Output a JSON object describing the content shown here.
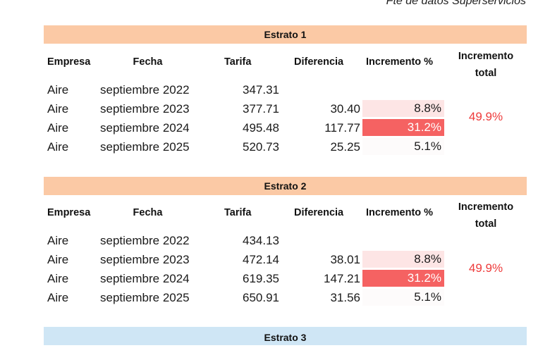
{
  "source_note": "Fte de datos Superservicios",
  "headers": {
    "empresa": "Empresa",
    "fecha": "Fecha",
    "tarifa": "Tarifa",
    "diferencia": "Diferencia",
    "incremento_pct": "Incremento %",
    "incremento_total_1": "Incremento",
    "incremento_total_2": "total"
  },
  "estratos": [
    {
      "title": "Estrato 1",
      "incremento_total": "49.9%",
      "rows": [
        {
          "empresa": "Aire",
          "fecha": "septiembre 2022",
          "tarifa": "347.31",
          "diferencia": "",
          "incremento": ""
        },
        {
          "empresa": "Aire",
          "fecha": "septiembre 2023",
          "tarifa": "377.71",
          "diferencia": "30.40",
          "incremento": "8.8%"
        },
        {
          "empresa": "Aire",
          "fecha": "septiembre 2024",
          "tarifa": "495.48",
          "diferencia": "117.77",
          "incremento": "31.2%"
        },
        {
          "empresa": "Aire",
          "fecha": "septiembre 2025",
          "tarifa": "520.73",
          "diferencia": "25.25",
          "incremento": "5.1%"
        }
      ]
    },
    {
      "title": "Estrato 2",
      "incremento_total": "49.9%",
      "rows": [
        {
          "empresa": "Aire",
          "fecha": "septiembre 2022",
          "tarifa": "434.13",
          "diferencia": "",
          "incremento": ""
        },
        {
          "empresa": "Aire",
          "fecha": "septiembre 2023",
          "tarifa": "472.14",
          "diferencia": "38.01",
          "incremento": "8.8%"
        },
        {
          "empresa": "Aire",
          "fecha": "septiembre 2024",
          "tarifa": "619.35",
          "diferencia": "147.21",
          "incremento": "31.2%"
        },
        {
          "empresa": "Aire",
          "fecha": "septiembre 2025",
          "tarifa": "650.91",
          "diferencia": "31.56",
          "incremento": "5.1%"
        }
      ]
    },
    {
      "title": "Estrato 3"
    }
  ],
  "colors": {
    "band_peach": "#fbc9a5",
    "band_blue": "#cfe6f5",
    "pct_light": "#fde5e5",
    "pct_strong": "#f56262",
    "total_text": "#ee3b3b"
  }
}
